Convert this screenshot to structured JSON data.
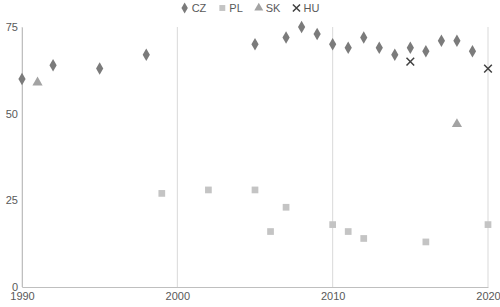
{
  "chart_data": {
    "type": "scatter",
    "series": [
      {
        "name": "CZ",
        "color": "#7b7b7b",
        "marker": "diamond",
        "x": [
          1990,
          1992,
          1995,
          1998,
          2005,
          2007,
          2008,
          2009,
          2010,
          2011,
          2012,
          2013,
          2014,
          2015,
          2016,
          2017,
          2018,
          2019
        ],
        "values": [
          60,
          64,
          63,
          67,
          70,
          72,
          75,
          73,
          70,
          69,
          72,
          69,
          67,
          69,
          68,
          71,
          71,
          68
        ]
      },
      {
        "name": "PL",
        "color": "#c4c4c4",
        "marker": "square",
        "x": [
          1999,
          2002,
          2005,
          2006,
          2007,
          2010,
          2011,
          2012,
          2016,
          2020
        ],
        "values": [
          27,
          28,
          28,
          16,
          23,
          18,
          16,
          14,
          13,
          18
        ]
      },
      {
        "name": "SK",
        "color": "#a3a3a3",
        "marker": "triangle",
        "x": [
          1991,
          2018
        ],
        "values": [
          59,
          47
        ]
      },
      {
        "name": "HU",
        "color": "#404040",
        "marker": "x",
        "x": [
          2015,
          2020
        ],
        "values": [
          65,
          63
        ]
      }
    ],
    "xlim": [
      1990,
      2020
    ],
    "xticks": [
      1990,
      2000,
      2010,
      2020
    ],
    "ylim": [
      0,
      75
    ],
    "yticks": [
      0,
      25,
      50,
      75
    ],
    "grid": true,
    "legend": "top"
  }
}
